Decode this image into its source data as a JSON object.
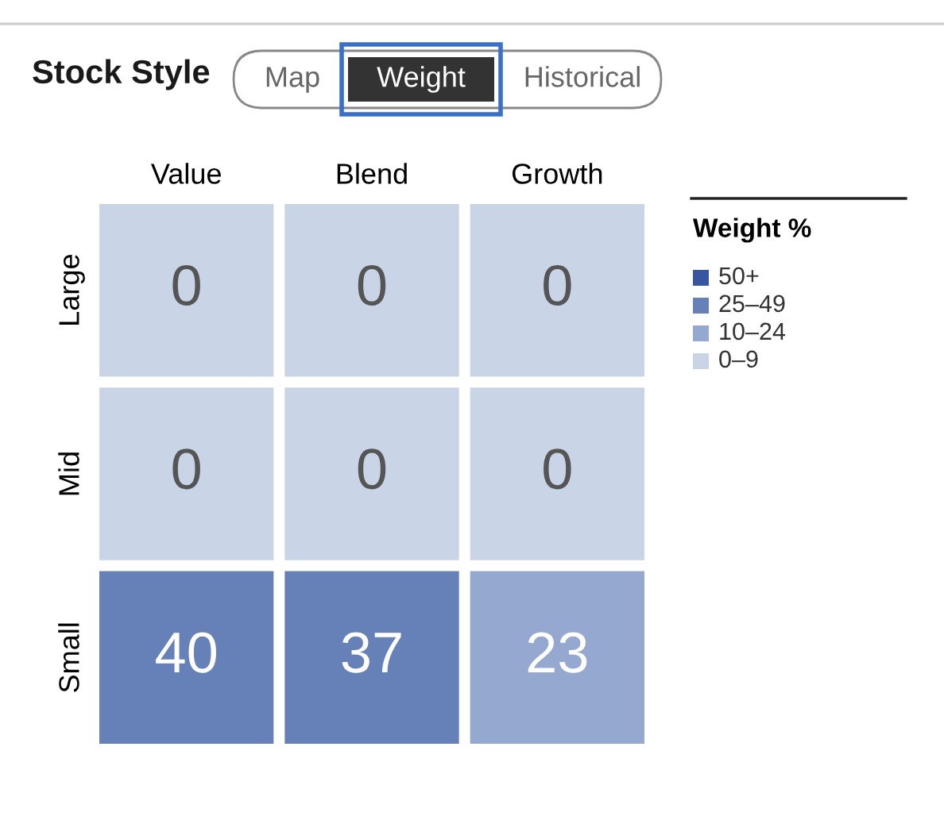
{
  "chart_data": {
    "type": "heatmap",
    "title": "Stock Style",
    "categories": [
      "Value",
      "Blend",
      "Growth"
    ],
    "y_categories": [
      "Large",
      "Mid",
      "Small"
    ],
    "cells": [
      [
        0,
        0,
        0
      ],
      [
        0,
        0,
        0
      ],
      [
        40,
        37,
        23
      ]
    ],
    "data_labels": true,
    "legend_title": "Weight %",
    "colors": [
      [
        "#c9d4e6",
        "#c9d4e6",
        "#c9d4e6"
      ],
      [
        "#c9d4e6",
        "#c9d4e6",
        "#c9d4e6"
      ],
      [
        "#6680b8",
        "#6680b8",
        "#94a8d0"
      ]
    ],
    "annotations": [
      "Map",
      "Weight",
      "Historical",
      "50+",
      "25–49",
      "10–24",
      "0–9"
    ]
  }
}
